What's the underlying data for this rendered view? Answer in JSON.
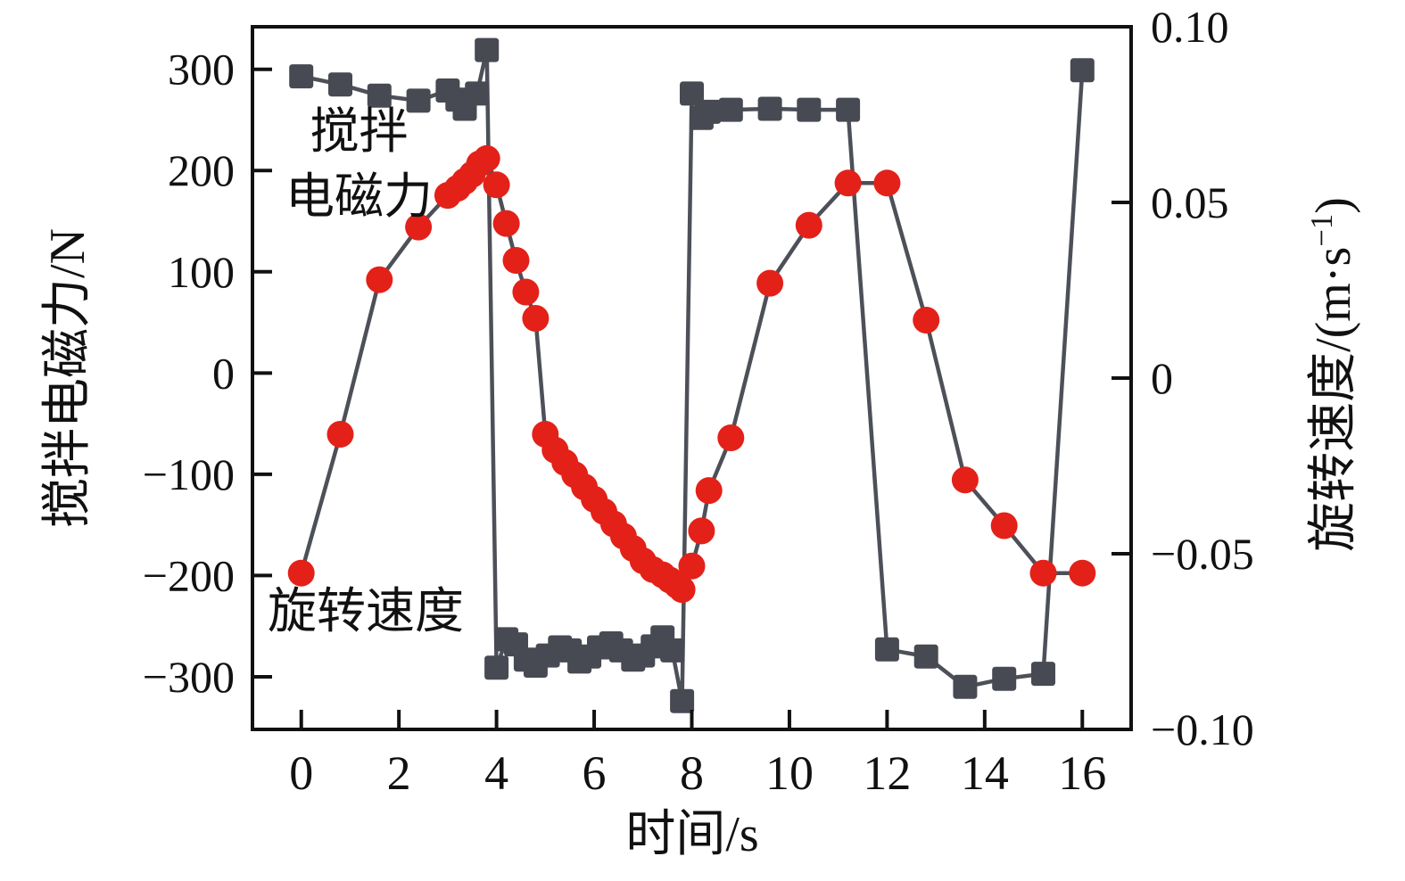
{
  "annotations": {
    "force_label_line1": "搅拌",
    "force_label_line2": "电磁力",
    "speed_label": "旋转速度"
  },
  "axes": {
    "x": {
      "title": "时间/s",
      "tick_values": [
        0,
        2,
        4,
        6,
        8,
        10,
        12,
        14,
        16
      ],
      "tick_labels": [
        "0",
        "2",
        "4",
        "6",
        "8",
        "10",
        "12",
        "14",
        "16"
      ]
    },
    "y_left": {
      "title": "搅拌电磁力/N",
      "tick_values": [
        300,
        200,
        100,
        0,
        -100,
        -200,
        -300
      ],
      "tick_labels": [
        "300",
        "200",
        "100",
        "0",
        "−100",
        "−200",
        "−300"
      ]
    },
    "y_right": {
      "title_prefix": "旋转速度/(m·s",
      "title_sup": "−1",
      "title_suffix": ")",
      "tick_values": [
        0.1,
        0.05,
        0,
        -0.05,
        -0.1
      ],
      "tick_labels": [
        "0.10",
        "0.05",
        "0",
        "−0.05",
        "−0.10"
      ]
    }
  },
  "colors": {
    "force_marker": "#474a52",
    "speed_marker": "#e32119",
    "series_line": "#4d5058",
    "axis": "#111111"
  },
  "chart_data": {
    "type": "line",
    "title": "",
    "xlabel": "时间/s",
    "ylabel_left": "搅拌电磁力/N",
    "ylabel_right": "旋转速度/(m·s−1)",
    "xlim": [
      -1,
      17
    ],
    "ylim_left": [
      -352,
      342
    ],
    "ylim_right": [
      -0.1,
      0.1
    ],
    "grid": false,
    "legend_position": "in-plot text annotations",
    "series": [
      {
        "name": "搅拌电磁力",
        "axis": "left",
        "marker": "square",
        "x": [
          0,
          0.8,
          1.6,
          2.4,
          3.0,
          3.2,
          3.35,
          3.6,
          3.8,
          4.0,
          4.2,
          4.4,
          4.6,
          4.8,
          5.05,
          5.3,
          5.5,
          5.7,
          5.9,
          6.1,
          6.35,
          6.55,
          6.8,
          7.0,
          7.2,
          7.4,
          7.6,
          7.8,
          8.0,
          8.2,
          8.35,
          8.8,
          9.6,
          10.4,
          11.2,
          12.0,
          12.8,
          13.6,
          14.4,
          15.2,
          16.0
        ],
        "y": [
          293,
          285,
          274,
          269,
          279,
          270,
          261,
          276,
          319,
          -291,
          -263,
          -268,
          -283,
          -289,
          -279,
          -271,
          -274,
          -285,
          -280,
          -271,
          -267,
          -274,
          -283,
          -279,
          -270,
          -261,
          -274,
          -324,
          276,
          252,
          258,
          260,
          261,
          260,
          260,
          -273,
          -280,
          -310,
          -302,
          -297,
          299
        ]
      },
      {
        "name": "旋转速度",
        "axis": "right",
        "marker": "circle",
        "x": [
          0,
          0.8,
          1.6,
          2.4,
          3.0,
          3.2,
          3.35,
          3.5,
          3.65,
          3.8,
          4.0,
          4.2,
          4.4,
          4.6,
          4.8,
          5.0,
          5.2,
          5.4,
          5.6,
          5.8,
          6.0,
          6.2,
          6.4,
          6.6,
          6.8,
          7.0,
          7.2,
          7.4,
          7.55,
          7.7,
          7.8,
          8.0,
          8.2,
          8.35,
          8.8,
          9.6,
          10.4,
          11.2,
          12.0,
          12.8,
          13.6,
          14.4,
          15.2,
          16.0
        ],
        "y": [
          -0.0555,
          -0.016,
          0.028,
          0.043,
          0.052,
          0.054,
          0.056,
          0.058,
          0.061,
          0.0625,
          0.055,
          0.044,
          0.0335,
          0.0245,
          0.017,
          -0.016,
          -0.0205,
          -0.024,
          -0.0275,
          -0.031,
          -0.0345,
          -0.038,
          -0.0415,
          -0.045,
          -0.0485,
          -0.052,
          -0.0545,
          -0.056,
          -0.0575,
          -0.059,
          -0.0602,
          -0.0535,
          -0.0435,
          -0.032,
          -0.017,
          0.027,
          0.0435,
          0.0555,
          0.0555,
          0.0165,
          -0.029,
          -0.042,
          -0.0555,
          -0.0555
        ]
      }
    ]
  }
}
